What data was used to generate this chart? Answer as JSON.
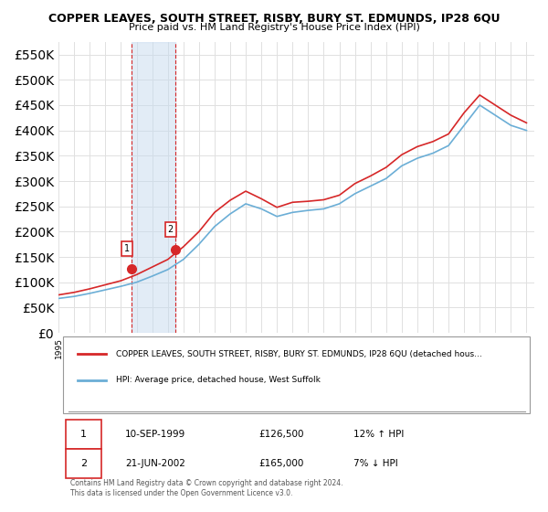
{
  "title": "COPPER LEAVES, SOUTH STREET, RISBY, BURY ST. EDMUNDS, IP28 6QU",
  "subtitle": "Price paid vs. HM Land Registry's House Price Index (HPI)",
  "ylabel_ticks": [
    0,
    50000,
    100000,
    150000,
    200000,
    250000,
    300000,
    350000,
    400000,
    450000,
    500000,
    550000
  ],
  "ylim": [
    0,
    575000
  ],
  "xlim_start": 1995.0,
  "xlim_end": 2025.5,
  "sale1_date": 1999.69,
  "sale1_price": 126500,
  "sale1_label": "1",
  "sale2_date": 2002.47,
  "sale2_price": 165000,
  "sale2_label": "2",
  "hpi_color": "#6baed6",
  "price_color": "#d62728",
  "shade_color": "#c6dbef",
  "marker_box_color": "#d62728",
  "grid_color": "#e0e0e0",
  "background_color": "#ffffff",
  "legend_line1": "COPPER LEAVES, SOUTH STREET, RISBY, BURY ST. EDMUNDS, IP28 6QU (detached hous…",
  "legend_line2": "HPI: Average price, detached house, West Suffolk",
  "table_row1": [
    "1",
    "10-SEP-1999",
    "£126,500",
    "12% ↑ HPI"
  ],
  "table_row2": [
    "2",
    "21-JUN-2002",
    "£165,000",
    "7% ↓ HPI"
  ],
  "footer": "Contains HM Land Registry data © Crown copyright and database right 2024.\nThis data is licensed under the Open Government Licence v3.0.",
  "hpi_years": [
    1995,
    1996,
    1997,
    1998,
    1999,
    2000,
    2001,
    2002,
    2003,
    2004,
    2005,
    2006,
    2007,
    2008,
    2009,
    2010,
    2011,
    2012,
    2013,
    2014,
    2015,
    2016,
    2017,
    2018,
    2019,
    2020,
    2021,
    2022,
    2023,
    2024,
    2025
  ],
  "hpi_values": [
    68000,
    72000,
    78000,
    85000,
    92000,
    100000,
    112000,
    125000,
    145000,
    175000,
    210000,
    235000,
    255000,
    245000,
    230000,
    238000,
    242000,
    245000,
    255000,
    275000,
    290000,
    305000,
    330000,
    345000,
    355000,
    370000,
    410000,
    450000,
    430000,
    410000,
    400000
  ],
  "price_years": [
    1995,
    1996,
    1997,
    1998,
    1999,
    2000,
    2001,
    2002,
    2003,
    2004,
    2005,
    2006,
    2007,
    2008,
    2009,
    2010,
    2011,
    2012,
    2013,
    2014,
    2015,
    2016,
    2017,
    2018,
    2019,
    2020,
    2021,
    2022,
    2023,
    2024,
    2025
  ],
  "price_values": [
    75000,
    80000,
    87000,
    95000,
    103000,
    115000,
    130000,
    145000,
    170000,
    200000,
    238000,
    262000,
    280000,
    265000,
    248000,
    258000,
    260000,
    263000,
    272000,
    295000,
    310000,
    327000,
    352000,
    368000,
    378000,
    393000,
    435000,
    470000,
    450000,
    430000,
    415000
  ]
}
